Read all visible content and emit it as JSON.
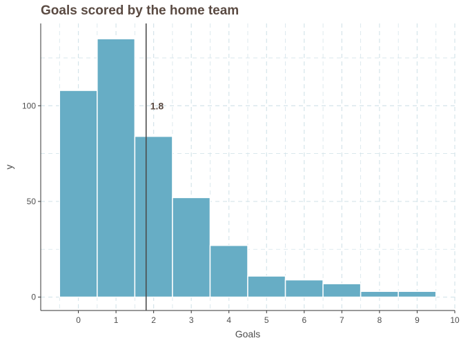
{
  "chart_data": {
    "type": "bar",
    "title": "Goals scored by the home team",
    "xlabel": "Goals",
    "ylabel": "y",
    "x_categories": [
      0,
      1,
      2,
      3,
      4,
      5,
      6,
      7,
      8,
      9
    ],
    "values": [
      108,
      135,
      84,
      52,
      27,
      11,
      9,
      7,
      3,
      3
    ],
    "x_ticks": [
      0,
      1,
      2,
      3,
      4,
      5,
      6,
      7,
      8,
      9,
      10
    ],
    "y_ticks": [
      0,
      50,
      100
    ],
    "xlim": [
      -1,
      10
    ],
    "ylim": [
      -7,
      143
    ],
    "mean_line": {
      "value": 1.8,
      "label": "1.8"
    },
    "grid": true,
    "colors": {
      "bar": "#67adc5",
      "mean_line": "#4a4a4a",
      "title": "#5a4a42",
      "grid": "#d4e4ea"
    }
  }
}
